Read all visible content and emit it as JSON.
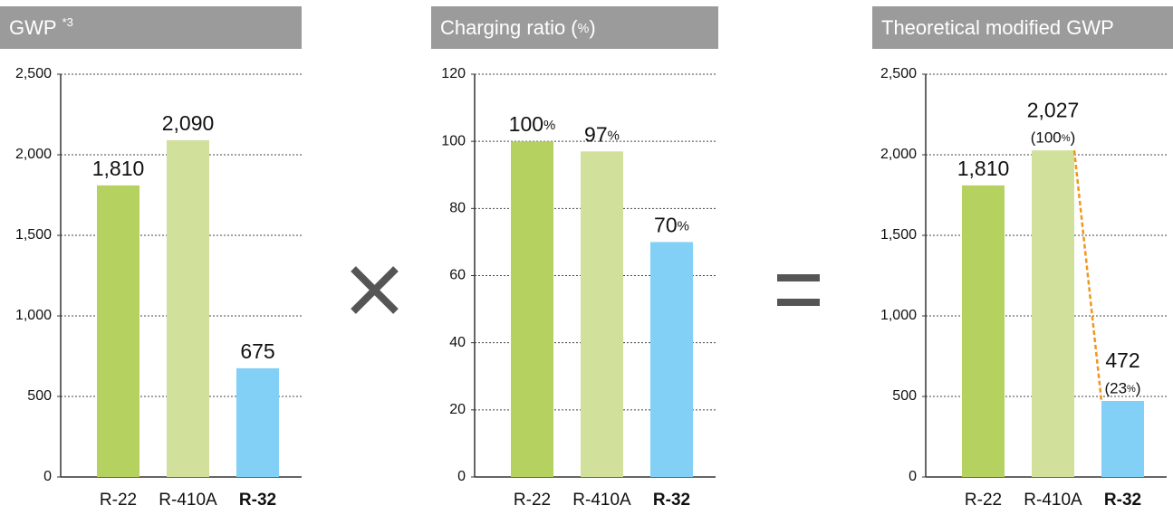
{
  "chart_data": [
    {
      "type": "bar",
      "title": "GWP",
      "title_superscript": "*3",
      "categories": [
        "R-22",
        "R-410A",
        "R-32"
      ],
      "bold_index": 2,
      "values": [
        1810,
        2090,
        675
      ],
      "value_labels": [
        "1,810",
        "2,090",
        "675"
      ],
      "colors": [
        "#b5d160",
        "#d1e19b",
        "#82d0f5"
      ],
      "ylim": [
        0,
        2500
      ],
      "yticks": [
        0,
        500,
        {
          "value": 1000,
          "label": "1,000"
        },
        {
          "value": 1500,
          "label": "1,500"
        },
        {
          "value": 2000,
          "label": "2,000"
        },
        {
          "value": 2500,
          "label": "2,500"
        }
      ],
      "grid": true
    },
    {
      "type": "bar",
      "title": "Charging ratio (%)",
      "categories": [
        "R-22",
        "R-410A",
        "R-32"
      ],
      "bold_index": 2,
      "values": [
        100,
        97,
        70
      ],
      "value_labels": [
        "100%",
        "97%",
        "70%"
      ],
      "colors": [
        "#b5d160",
        "#d1e19b",
        "#82d0f5"
      ],
      "ylim": [
        0,
        120
      ],
      "yticks": [
        0,
        20,
        40,
        60,
        80,
        100,
        120
      ],
      "grid": true
    },
    {
      "type": "bar",
      "title": "Theoretical modified GWP",
      "categories": [
        "R-22",
        "R-410A",
        "R-32"
      ],
      "bold_index": 2,
      "values": [
        1810,
        2027,
        472
      ],
      "value_labels": [
        "1,810",
        "2,027",
        "472"
      ],
      "ratio_values": [
        null,
        100,
        23
      ],
      "ratio_labels": [
        null,
        "(100%)",
        "(23%)"
      ],
      "connector_color": "#f0961e",
      "colors": [
        "#b5d160",
        "#d1e19b",
        "#82d0f5"
      ],
      "ylim": [
        0,
        2500
      ],
      "yticks": [
        0,
        500,
        {
          "value": 1000,
          "label": "1,000"
        },
        {
          "value": 1500,
          "label": "1,500"
        },
        {
          "value": 2000,
          "label": "2,000"
        },
        {
          "value": 2500,
          "label": "2,500"
        }
      ],
      "grid": true
    }
  ]
}
